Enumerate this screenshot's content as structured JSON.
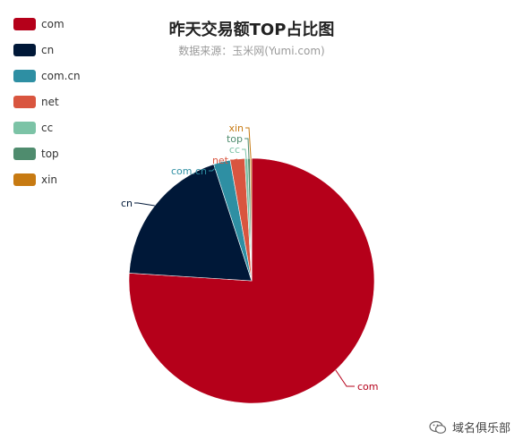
{
  "chart_data": {
    "type": "pie",
    "title": "昨天交易额TOP占比图",
    "subtitle": "数据来源：玉米网(Yumi.com)",
    "legend_position": "top-left",
    "slices": [
      {
        "name": "com",
        "value": 76.0,
        "color": "#b5001a"
      },
      {
        "name": "cn",
        "value": 19.0,
        "color": "#001838"
      },
      {
        "name": "com.cn",
        "value": 2.2,
        "color": "#2e8fa3"
      },
      {
        "name": "net",
        "value": 1.9,
        "color": "#d9553f"
      },
      {
        "name": "cc",
        "value": 0.4,
        "color": "#7cc3a6"
      },
      {
        "name": "top",
        "value": 0.3,
        "color": "#4f8c6e"
      },
      {
        "name": "xin",
        "value": 0.2,
        "color": "#c77a12"
      }
    ]
  },
  "watermark": {
    "icon": "wechat-icon",
    "text": "域名俱乐部"
  }
}
